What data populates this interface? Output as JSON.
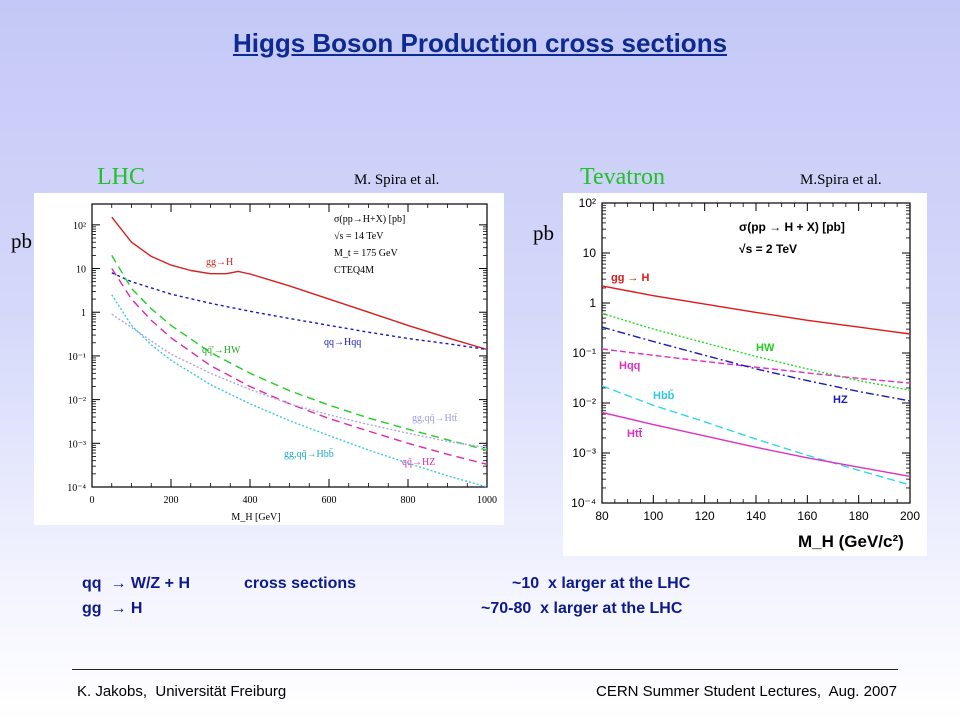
{
  "title": "Higgs Boson Production cross sections",
  "left_panel": {
    "collider": "LHC",
    "credit": "M. Spira et al.",
    "unit": "pb"
  },
  "right_panel": {
    "collider": "Tevatron",
    "credit": "M.Spira et al.",
    "unit": "pb"
  },
  "summary": [
    {
      "process": "qq  → W/Z + H",
      "desc": "cross sections",
      "factor": "~10  x larger at the LHC"
    },
    {
      "process": "gg  → H",
      "desc": "",
      "factor": "~70-80  x larger at the LHC"
    }
  ],
  "footer": {
    "left": "K. Jakobs,  Universität Freiburg",
    "right": "CERN Summer Student Lectures,  Aug. 2007"
  },
  "chart_data": [
    {
      "type": "line",
      "xlabel": "M_H [GeV]",
      "xlim": [
        0,
        1000
      ],
      "yscale": "log",
      "ylim": [
        0.0001,
        300
      ],
      "x_ticks": [
        0,
        200,
        400,
        600,
        800,
        1000
      ],
      "y_ticks": [
        {
          "value": 0.0001,
          "label": "10⁻⁴"
        },
        {
          "value": 0.001,
          "label": "10⁻³"
        },
        {
          "value": 0.01,
          "label": "10⁻²"
        },
        {
          "value": 0.1,
          "label": "10⁻¹"
        },
        {
          "value": 1,
          "label": "1"
        },
        {
          "value": 10,
          "label": "10"
        },
        {
          "value": 100,
          "label": "10²"
        }
      ],
      "info_lines": [
        "σ(pp→H+X) [pb]",
        "√s = 14 TeV",
        "M_t = 175 GeV",
        "CTEQ4M"
      ],
      "series": [
        {
          "name": "gg→H",
          "color": "#d62020",
          "dash": "none",
          "x": [
            50,
            100,
            150,
            200,
            250,
            300,
            340,
            370,
            400,
            450,
            500,
            600,
            700,
            800,
            900,
            1000
          ],
          "y": [
            150,
            40,
            19,
            12,
            9,
            7.6,
            7.6,
            8.6,
            7.5,
            5.5,
            4.0,
            2.0,
            1.0,
            0.5,
            0.26,
            0.14
          ]
        },
        {
          "name": "qq→Hqq",
          "color": "#1a1ac0",
          "dash": "3,3",
          "x": [
            50,
            100,
            200,
            300,
            400,
            500,
            600,
            700,
            800,
            900,
            1000
          ],
          "y": [
            8,
            5,
            2.6,
            1.6,
            1.05,
            0.72,
            0.5,
            0.35,
            0.25,
            0.19,
            0.14
          ]
        },
        {
          "name": "qq̄'→HW",
          "color": "#22cc22",
          "dash": "8,5",
          "x": [
            50,
            100,
            150,
            200,
            300,
            400,
            500,
            600,
            700,
            800,
            900,
            1000
          ],
          "y": [
            20,
            3.5,
            1.2,
            0.5,
            0.12,
            0.04,
            0.016,
            0.0075,
            0.0038,
            0.0021,
            0.0012,
            0.0007
          ]
        },
        {
          "name": "qq̄→HZ",
          "color": "#e02aa8",
          "dash": "8,5",
          "x": [
            50,
            100,
            150,
            200,
            300,
            400,
            500,
            600,
            700,
            800,
            900,
            1000
          ],
          "y": [
            10,
            2,
            0.65,
            0.26,
            0.06,
            0.02,
            0.008,
            0.0037,
            0.0019,
            0.001,
            0.00056,
            0.00033
          ]
        },
        {
          "name": "gg,qq̄→Htt̄",
          "color": "#a8a8e8",
          "dash": "2,2",
          "x": [
            50,
            100,
            150,
            200,
            300,
            400,
            500,
            600,
            700,
            800,
            900,
            1000
          ],
          "y": [
            0.9,
            0.45,
            0.22,
            0.11,
            0.04,
            0.017,
            0.008,
            0.0045,
            0.0027,
            0.0017,
            0.0011,
            0.0008
          ]
        },
        {
          "name": "gg,qq̄→Hbb̄",
          "color": "#3ac8e0",
          "dash": "2,2",
          "x": [
            50,
            100,
            150,
            200,
            300,
            400,
            500,
            600,
            700,
            800,
            900,
            1000
          ],
          "y": [
            2.5,
            0.5,
            0.18,
            0.08,
            0.022,
            0.008,
            0.0033,
            0.0015,
            0.0007,
            0.00035,
            0.00018,
            0.0001
          ]
        }
      ]
    },
    {
      "type": "line",
      "xlabel": "M_H (GeV/c²)",
      "xlim": [
        80,
        200
      ],
      "yscale": "log",
      "ylim": [
        0.0001,
        100
      ],
      "x_ticks": [
        80,
        100,
        120,
        140,
        160,
        180,
        200
      ],
      "y_ticks": [
        {
          "value": 0.0001,
          "label": "10⁻⁴"
        },
        {
          "value": 0.001,
          "label": "10⁻³"
        },
        {
          "value": 0.01,
          "label": "10⁻²"
        },
        {
          "value": 0.1,
          "label": "10⁻¹"
        },
        {
          "value": 1,
          "label": "1"
        },
        {
          "value": 10,
          "label": "10"
        },
        {
          "value": 100,
          "label": "10²"
        }
      ],
      "info_lines": [
        "σ(pp → H + X) [pb]",
        "√s = 2 TeV"
      ],
      "series": [
        {
          "name": "gg → H",
          "color": "#e01818",
          "dash": "none",
          "x": [
            80,
            100,
            120,
            140,
            160,
            180,
            200
          ],
          "y": [
            2.2,
            1.4,
            0.95,
            0.65,
            0.45,
            0.33,
            0.24
          ]
        },
        {
          "name": "HW",
          "color": "#22dd22",
          "dash": "2,2",
          "x": [
            80,
            100,
            120,
            140,
            160,
            180,
            200
          ],
          "y": [
            0.62,
            0.3,
            0.16,
            0.085,
            0.048,
            0.028,
            0.018
          ]
        },
        {
          "name": "Hqq",
          "color": "#e030c0",
          "dash": "6,3",
          "x": [
            80,
            100,
            120,
            140,
            160,
            180,
            200
          ],
          "y": [
            0.12,
            0.09,
            0.068,
            0.052,
            0.04,
            0.031,
            0.025
          ]
        },
        {
          "name": "HZ",
          "color": "#1a1ab8",
          "dash": "8,3,2,3",
          "x": [
            80,
            100,
            120,
            140,
            160,
            180,
            200
          ],
          "y": [
            0.33,
            0.17,
            0.09,
            0.048,
            0.028,
            0.017,
            0.011
          ]
        },
        {
          "name": "Hbb̄",
          "color": "#30d8e8",
          "dash": "8,4",
          "x": [
            80,
            100,
            120,
            140,
            160,
            180,
            200
          ],
          "y": [
            0.022,
            0.009,
            0.0042,
            0.0019,
            0.0009,
            0.00045,
            0.00023
          ]
        },
        {
          "name": "Htt̄",
          "color": "#e030c0",
          "dash": "none",
          "x": [
            80,
            100,
            120,
            140,
            160,
            180,
            200
          ],
          "y": [
            0.0065,
            0.0037,
            0.0022,
            0.0013,
            0.0008,
            0.00052,
            0.00034
          ]
        }
      ]
    }
  ]
}
